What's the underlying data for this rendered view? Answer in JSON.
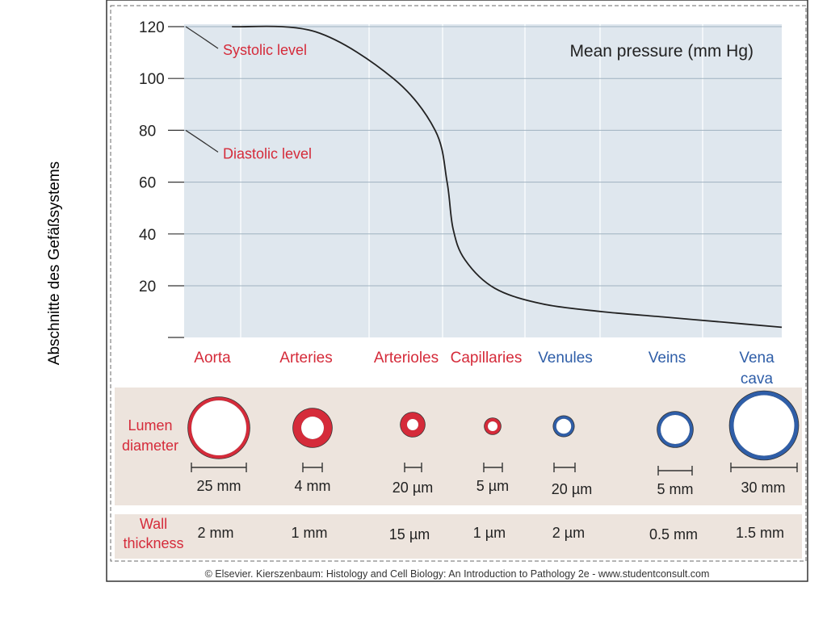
{
  "side_title": "Abschnitte des Gefäßsystems",
  "chart_data": {
    "type": "line",
    "title": "Mean pressure (mm Hg)",
    "xlabel": "",
    "ylabel": "",
    "yticks": [
      "120",
      "100",
      "80",
      "60",
      "40",
      "20"
    ],
    "ylim": [
      0,
      120
    ],
    "grid": true,
    "series": [
      {
        "name": "Mean pressure (mm Hg)",
        "x": [
          0.08,
          0.22,
          0.35,
          0.42,
          0.44,
          0.45,
          0.47,
          0.52,
          0.6,
          0.7,
          0.8,
          0.9,
          1.0
        ],
        "values": [
          120,
          118,
          100,
          80,
          60,
          42,
          30,
          19,
          13,
          10,
          8,
          6,
          4
        ]
      }
    ],
    "annotations": [
      {
        "label": "Systolic level",
        "value": 120
      },
      {
        "label": "Diastolic level",
        "value": 80
      }
    ],
    "colors": {
      "arterial": "#d52b3a",
      "venous": "#2f5ea8",
      "curve": "#222222"
    },
    "categories": [
      {
        "name": "Aorta",
        "side": "arterial",
        "lumen": "25 mm",
        "wall": "2 mm"
      },
      {
        "name": "Arteries",
        "side": "arterial",
        "lumen": "4 mm",
        "wall": "1 mm"
      },
      {
        "name": "Arterioles",
        "side": "arterial",
        "lumen": "20 µm",
        "wall": "15 µm"
      },
      {
        "name": "Capillaries",
        "side": "arterial",
        "lumen": "5 µm",
        "wall": "1 µm"
      },
      {
        "name": "Venules",
        "side": "venous",
        "lumen": "20 µm",
        "wall": "2 µm"
      },
      {
        "name": "Veins",
        "side": "venous",
        "lumen": "5 mm",
        "wall": "0.5  mm"
      },
      {
        "name": "Vena\ncava",
        "side": "venous",
        "lumen": "30 mm",
        "wall": "1.5 mm"
      }
    ],
    "row_labels": {
      "lumen": "Lumen\ndiameter",
      "wall": "Wall\nthickness"
    },
    "credit": "© Elsevier. Kierszenbaum: Histology and Cell Biology: An Introduction to Pathology 2e - www.studentconsult.com"
  }
}
